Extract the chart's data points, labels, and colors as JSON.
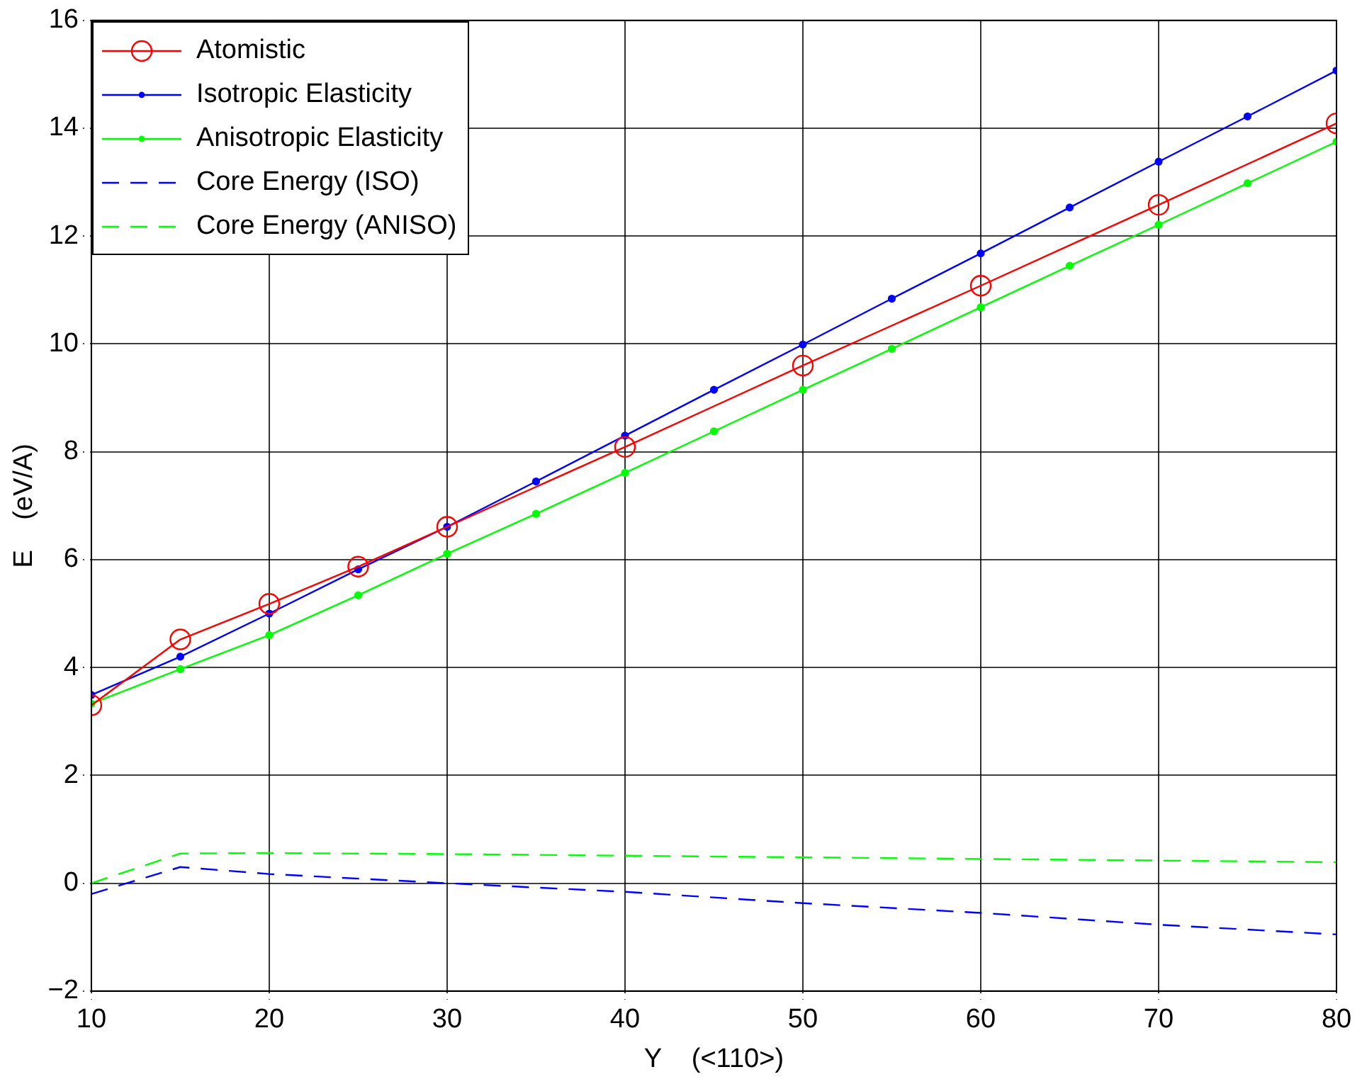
{
  "chart_data": {
    "type": "line",
    "xlabel": "Y    (<110>)",
    "ylabel": "E    (eV/A)",
    "xlim": [
      10,
      80
    ],
    "xticks": [
      10,
      20,
      30,
      40,
      50,
      60,
      70,
      80
    ],
    "ylim": [
      -2,
      16
    ],
    "yticks": [
      -2,
      0,
      2,
      4,
      6,
      8,
      10,
      12,
      14,
      16
    ],
    "grid": true,
    "legend": "top left",
    "series": [
      {
        "name": "Atomistic",
        "color": "#ff0000",
        "marker": "circle",
        "line_style": "solid",
        "x": [
          10,
          15,
          20,
          25,
          30,
          40,
          50,
          60,
          70,
          80
        ],
        "values": [
          3.3,
          4.52,
          5.18,
          5.87,
          6.61,
          8.09,
          9.6,
          11.08,
          12.58,
          14.09
        ]
      },
      {
        "name": "Isotropic Elasticity",
        "color": "#0000ff",
        "marker": "circle",
        "line_style": "solid",
        "x": [
          10,
          15,
          20,
          25,
          30,
          35,
          40,
          45,
          50,
          55,
          60,
          65,
          70,
          75,
          80
        ],
        "values": [
          3.49,
          4.2,
          5.0,
          5.82,
          6.61,
          7.45,
          8.3,
          9.15,
          9.99,
          10.84,
          11.68,
          12.53,
          13.38,
          14.22,
          15.07
        ]
      },
      {
        "name": "Anisotropic Elasticity",
        "color": "#00ff00",
        "marker": "circle",
        "line_style": "solid",
        "x": [
          10,
          15,
          20,
          25,
          30,
          35,
          40,
          45,
          50,
          55,
          60,
          65,
          70,
          75,
          80
        ],
        "values": [
          3.33,
          3.97,
          4.6,
          5.34,
          6.11,
          6.85,
          7.61,
          8.38,
          9.15,
          9.91,
          10.68,
          11.45,
          12.21,
          12.98,
          13.75
        ]
      },
      {
        "name": "Core Energy (ISO)",
        "color": "#0000ff",
        "marker": "none",
        "line_style": "dashed",
        "x": [
          10,
          15,
          20,
          30,
          40,
          50,
          60,
          70,
          80
        ],
        "values": [
          -0.2,
          0.3,
          0.17,
          0.0,
          -0.16,
          -0.37,
          -0.55,
          -0.77,
          -0.95
        ]
      },
      {
        "name": "Core Energy (ANISO)",
        "color": "#00ff00",
        "marker": "none",
        "line_style": "dashed",
        "x": [
          10,
          15,
          20,
          30,
          40,
          50,
          60,
          70,
          80
        ],
        "values": [
          0.0,
          0.55,
          0.56,
          0.54,
          0.51,
          0.48,
          0.45,
          0.42,
          0.39
        ]
      }
    ]
  }
}
